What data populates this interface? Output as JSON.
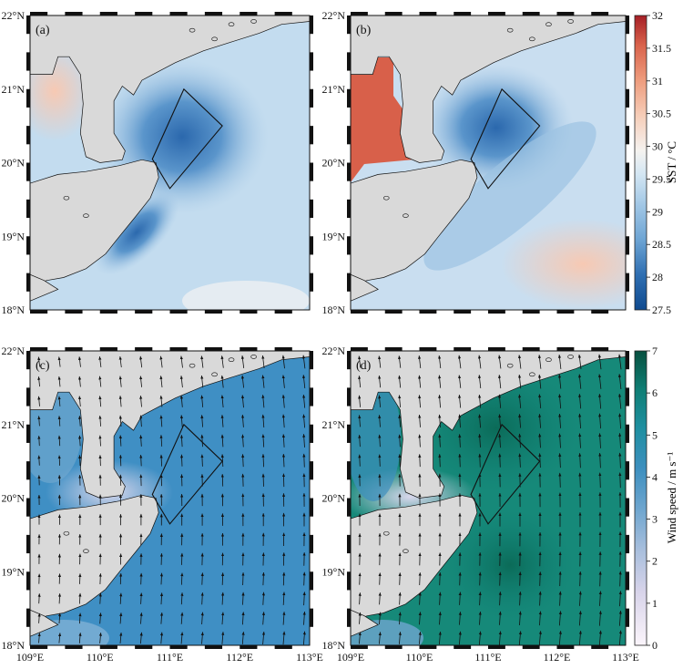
{
  "panels": [
    {
      "id": "a",
      "label": "(a)",
      "variable": "sst"
    },
    {
      "id": "b",
      "label": "(b)",
      "variable": "sst"
    },
    {
      "id": "c",
      "label": "(c)",
      "variable": "wind"
    },
    {
      "id": "d",
      "label": "(d)",
      "variable": "wind"
    }
  ],
  "map": {
    "lat_ticks": [
      "18°N",
      "19°N",
      "20°N",
      "21°N",
      "22°N"
    ],
    "lon_ticks": [
      "109°E",
      "110°E",
      "111°E",
      "112°E",
      "113°E"
    ],
    "lon_range": [
      109,
      113
    ],
    "lat_range": [
      18,
      22
    ],
    "land_color": "#d9d9d9",
    "study_box": [
      [
        111.2,
        21.0
      ],
      [
        111.75,
        20.5
      ],
      [
        111.0,
        19.65
      ],
      [
        110.75,
        20.05
      ]
    ]
  },
  "colorbars": {
    "sst": {
      "label": "SST / °C",
      "ticks": [
        "27.5",
        "28",
        "28.5",
        "29",
        "29.5",
        "30",
        "30.5",
        "31",
        "31.5",
        "32"
      ],
      "min": 27.5,
      "max": 32,
      "colors": [
        "#1c5ea6",
        "#3f80c0",
        "#6ea5d4",
        "#a3c8e6",
        "#d3e6f3",
        "#f5f3f0",
        "#f6cdb8",
        "#ee9c7d",
        "#d9624b",
        "#b52b2b"
      ]
    },
    "wind": {
      "label": "Wind speed / m s⁻¹",
      "ticks": [
        "0",
        "1",
        "2",
        "3",
        "4",
        "5",
        "6",
        "7"
      ],
      "min": 0,
      "max": 7,
      "colors": [
        "#faf4f9",
        "#d8d4ea",
        "#a9bfdd",
        "#6fa6cf",
        "#3d8fbf",
        "#1e8fa0",
        "#0f7e74",
        "#0b5f4f"
      ]
    }
  }
}
